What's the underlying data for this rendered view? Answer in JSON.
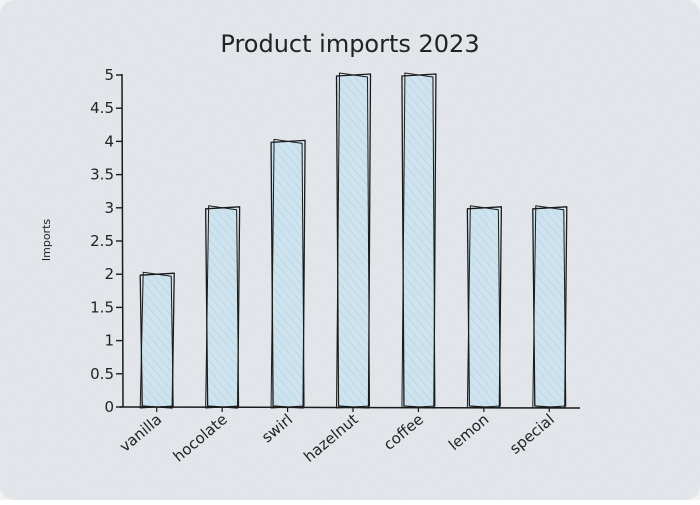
{
  "chart_data": {
    "type": "bar",
    "title": "Product imports 2023",
    "xlabel": "",
    "ylabel": "Imports",
    "categories": [
      "vanilla",
      "hocolate",
      "swirl",
      "hazelnut",
      "coffee",
      "lemon",
      "special"
    ],
    "values": [
      2,
      3,
      4,
      5,
      5,
      3,
      3
    ],
    "ylim": [
      0,
      5
    ],
    "yticks": [
      "0",
      "0.5",
      "1",
      "1.5",
      "2",
      "2.5",
      "3",
      "3.5",
      "4",
      "4.5",
      "5"
    ],
    "grid": false,
    "legend": "none",
    "colors": {
      "bar_fill": "#cfe3ee",
      "bar_hatch": "#9ec8de",
      "stroke": "#1a1a1a",
      "background": "#eaedf1"
    }
  }
}
